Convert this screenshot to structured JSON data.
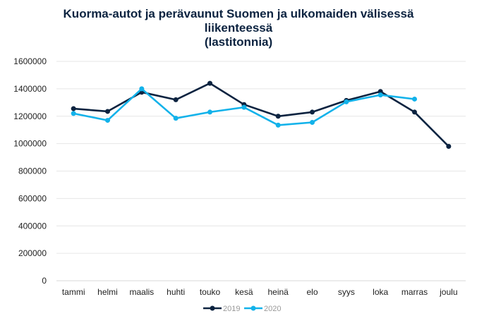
{
  "chart_data": {
    "type": "line",
    "title_lines": [
      "Kuorma-autot ja perävaunut Suomen ja ulkomaiden välisessä",
      "liikenteessä",
      "(lastitonnia)"
    ],
    "xlabel": "",
    "ylabel": "",
    "categories": [
      "tammi",
      "helmi",
      "maalis",
      "huhti",
      "touko",
      "kesä",
      "heinä",
      "elo",
      "syys",
      "loka",
      "marras",
      "joulu"
    ],
    "ylim": [
      0,
      1600000
    ],
    "yticks": [
      0,
      200000,
      400000,
      600000,
      800000,
      1000000,
      1200000,
      1400000,
      1600000
    ],
    "ytick_labels": [
      "0",
      "200000",
      "400000",
      "600000",
      "800000",
      "1000000",
      "1200000",
      "1400000",
      "1600000"
    ],
    "grid": true,
    "legend_position": "bottom",
    "series": [
      {
        "name": "2019",
        "color": "#0c2340",
        "values": [
          1255000,
          1235000,
          1375000,
          1320000,
          1440000,
          1285000,
          1200000,
          1230000,
          1315000,
          1380000,
          1230000,
          980000
        ]
      },
      {
        "name": "2020",
        "color": "#12b2ea",
        "values": [
          1220000,
          1170000,
          1400000,
          1185000,
          1230000,
          1265000,
          1135000,
          1155000,
          1305000,
          1355000,
          1325000,
          null
        ]
      }
    ]
  }
}
